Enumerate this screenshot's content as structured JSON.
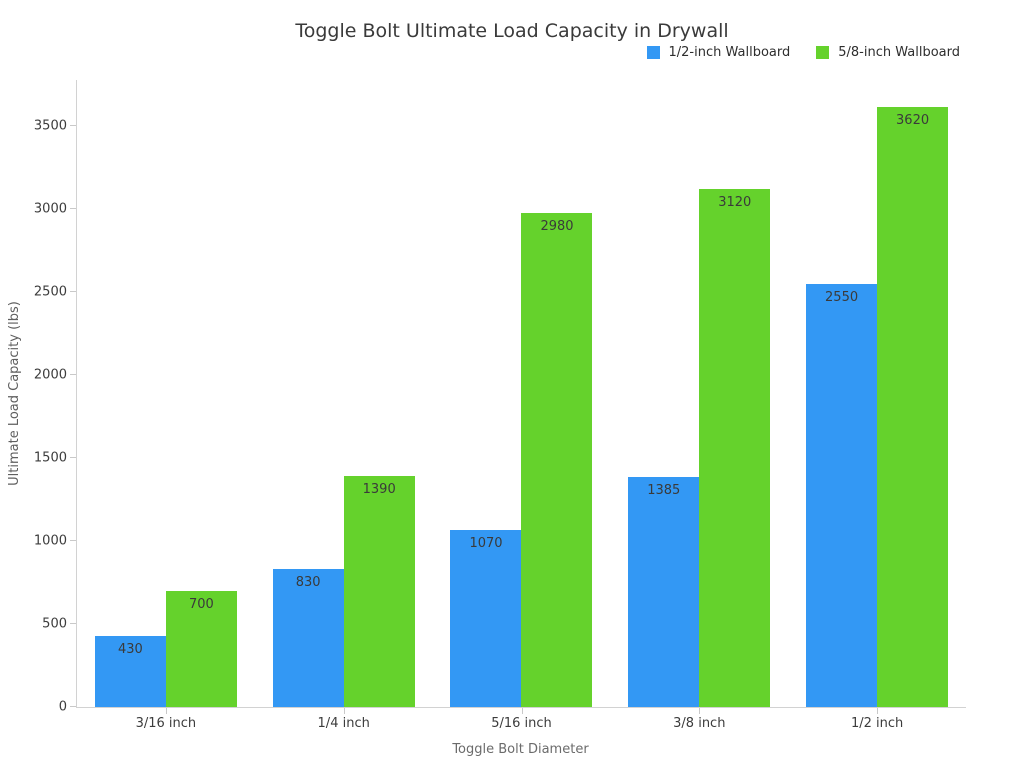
{
  "chart_data": {
    "type": "bar",
    "title": "Toggle Bolt Ultimate Load Capacity in Drywall",
    "categories": [
      "3/16 inch",
      "1/4 inch",
      "5/16 inch",
      "3/8 inch",
      "1/2 inch"
    ],
    "series": [
      {
        "name": "1/2-inch Wallboard",
        "color": "#3398f4",
        "values": [
          430,
          830,
          1070,
          1385,
          2550
        ]
      },
      {
        "name": "5/8-inch Wallboard",
        "color": "#65d22c",
        "values": [
          700,
          1390,
          2980,
          3120,
          3620
        ]
      }
    ],
    "xlabel": "Toggle Bolt Diameter",
    "ylabel": "Ultimate Load Capacity (lbs)",
    "yticks": [
      0,
      500,
      1000,
      1500,
      2000,
      2500,
      3000,
      3500
    ],
    "ylim": [
      0,
      3780
    ],
    "grid": false,
    "legend_position": "top-right",
    "bar_value_labels": "inside-top",
    "axis_color": "#d2d2d2",
    "tick_label_color": "#3c3c3c",
    "value_label_color": "#3a3a3a"
  }
}
